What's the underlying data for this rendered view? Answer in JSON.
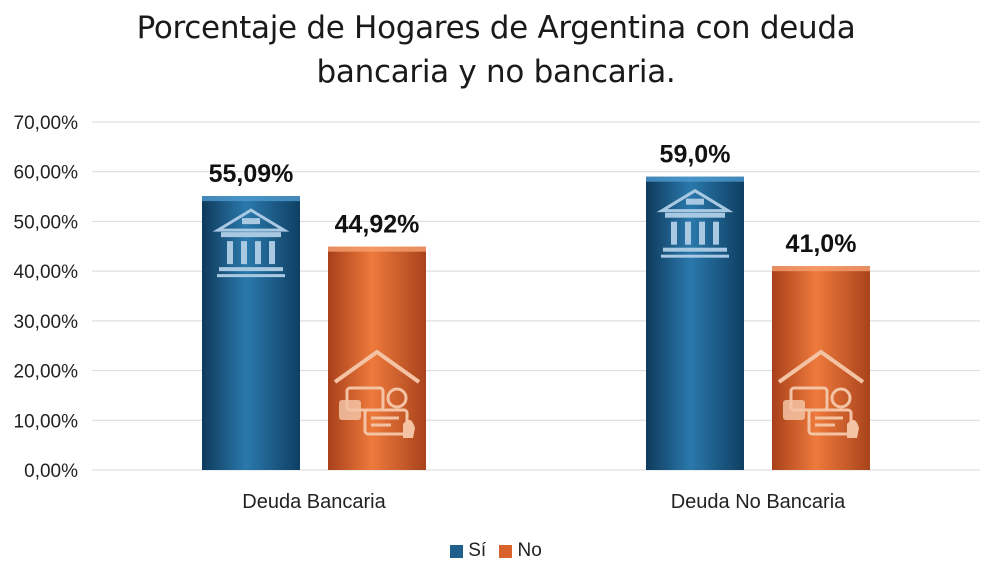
{
  "chart_data": {
    "type": "bar",
    "title_lines": [
      "Porcentaje de Hogares de Argentina con deuda",
      "bancaria y no bancaria."
    ],
    "categories": [
      "Deuda Bancaria",
      "Deuda No Bancaria"
    ],
    "series": [
      {
        "name": "Sí",
        "color": "#1e5f8c",
        "icon": "bank-icon",
        "values": [
          55.09,
          59.0
        ],
        "labels": [
          "55,09%",
          "59,0%"
        ]
      },
      {
        "name": "No",
        "color": "#d9632b",
        "icon": "credit-cards-icon",
        "values": [
          44.92,
          41.0
        ],
        "labels": [
          "44,92%",
          "41,0%"
        ]
      }
    ],
    "ylim": [
      0,
      70
    ],
    "yticks": [
      0,
      10,
      20,
      30,
      40,
      50,
      60,
      70
    ],
    "ytick_labels": [
      "0,00%",
      "10,00%",
      "20,00%",
      "30,00%",
      "40,00%",
      "50,00%",
      "60,00%",
      "70,00%"
    ],
    "grid": true,
    "legend_position": "bottom"
  }
}
